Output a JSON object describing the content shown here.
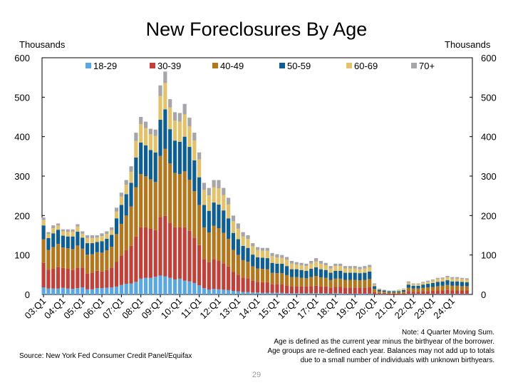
{
  "title": "New Foreclosures By Age",
  "left_unit": "Thousands",
  "right_unit": "Thousands",
  "note": [
    "Note: 4 Quarter Moving Sum.",
    "Age is defined as the current year minus the birthyear of the borrower.",
    "Age groups are re-defined each year. Balances may not add up to totals",
    "due to a small number of individuals with unknown birthyears."
  ],
  "source": "Source: New York Fed Consumer Credit Panel/Equifax",
  "page_number": "29",
  "chart_data": {
    "type": "bar",
    "stacked": true,
    "title": "New Foreclosures By Age",
    "xlabel": "",
    "ylabel": "Thousands",
    "ylim": [
      0,
      600
    ],
    "yticks": [
      0,
      100,
      200,
      300,
      400,
      500,
      600
    ],
    "grid": false,
    "legend_position": "top",
    "x_tick_labels": [
      "03:Q1",
      "04:Q1",
      "05:Q1",
      "06:Q1",
      "07:Q1",
      "08:Q1",
      "09:Q1",
      "10:Q1",
      "11:Q1",
      "12:Q1",
      "13:Q1",
      "14:Q1",
      "15:Q1",
      "16:Q1",
      "17:Q1",
      "18:Q1",
      "19:Q1",
      "20:Q1",
      "21:Q1",
      "22:Q1",
      "23:Q1",
      "24:Q1"
    ],
    "categories": [
      "03:Q1",
      "03:Q2",
      "03:Q3",
      "03:Q4",
      "04:Q1",
      "04:Q2",
      "04:Q3",
      "04:Q4",
      "05:Q1",
      "05:Q2",
      "05:Q3",
      "05:Q4",
      "06:Q1",
      "06:Q2",
      "06:Q3",
      "06:Q4",
      "07:Q1",
      "07:Q2",
      "07:Q3",
      "07:Q4",
      "08:Q1",
      "08:Q2",
      "08:Q3",
      "08:Q4",
      "09:Q1",
      "09:Q2",
      "09:Q3",
      "09:Q4",
      "10:Q1",
      "10:Q2",
      "10:Q3",
      "10:Q4",
      "11:Q1",
      "11:Q2",
      "11:Q3",
      "11:Q4",
      "12:Q1",
      "12:Q2",
      "12:Q3",
      "12:Q4",
      "13:Q1",
      "13:Q2",
      "13:Q3",
      "13:Q4",
      "14:Q1",
      "14:Q2",
      "14:Q3",
      "14:Q4",
      "15:Q1",
      "15:Q2",
      "15:Q3",
      "15:Q4",
      "16:Q1",
      "16:Q2",
      "16:Q3",
      "16:Q4",
      "17:Q1",
      "17:Q2",
      "17:Q3",
      "17:Q4",
      "18:Q1",
      "18:Q2",
      "18:Q3",
      "18:Q4",
      "19:Q1",
      "19:Q2",
      "19:Q3",
      "19:Q4",
      "20:Q1",
      "20:Q2",
      "20:Q3",
      "20:Q4",
      "21:Q1",
      "21:Q2",
      "21:Q3",
      "21:Q4",
      "22:Q1",
      "22:Q2",
      "22:Q3",
      "22:Q4",
      "23:Q1",
      "23:Q2",
      "23:Q3",
      "23:Q4",
      "24:Q1",
      "24:Q2",
      "24:Q3",
      "24:Q4"
    ],
    "totals": [
      195,
      158,
      175,
      180,
      165,
      165,
      165,
      178,
      160,
      150,
      150,
      150,
      155,
      160,
      170,
      220,
      258,
      290,
      325,
      410,
      450,
      438,
      420,
      418,
      530,
      565,
      495,
      462,
      460,
      483,
      448,
      410,
      360,
      283,
      270,
      290,
      290,
      270,
      245,
      200,
      180,
      158,
      150,
      130,
      120,
      118,
      118,
      105,
      102,
      100,
      95,
      85,
      82,
      80,
      78,
      85,
      92,
      85,
      80,
      72,
      78,
      78,
      72,
      72,
      72,
      70,
      72,
      75,
      28,
      15,
      12,
      10,
      10,
      12,
      15,
      33,
      28,
      28,
      32,
      35,
      38,
      42,
      43,
      47,
      44,
      44,
      42,
      41
    ],
    "series": [
      {
        "name": "18-29",
        "color": "#5BA7E0",
        "values": [
          18,
          15,
          15,
          15,
          17,
          15,
          14,
          16,
          18,
          13,
          13,
          16,
          16,
          17,
          18,
          20,
          24,
          27,
          28,
          32,
          40,
          42,
          42,
          45,
          48,
          46,
          42,
          38,
          40,
          35,
          33,
          29,
          23,
          16,
          12,
          14,
          13,
          12,
          11,
          9,
          8,
          6,
          6,
          5,
          5,
          4,
          4,
          4,
          4,
          4,
          3,
          3,
          3,
          3,
          3,
          3,
          3,
          3,
          3,
          2,
          3,
          3,
          2,
          2,
          2,
          2,
          2,
          2,
          1,
          1,
          1,
          0,
          0,
          0,
          0,
          1,
          1,
          1,
          1,
          1,
          1,
          1,
          1,
          1,
          1,
          1,
          1,
          1
        ]
      },
      {
        "name": "30-39",
        "color": "#C0403A",
        "values": [
          62,
          48,
          50,
          55,
          50,
          50,
          48,
          52,
          50,
          40,
          42,
          44,
          42,
          45,
          50,
          63,
          75,
          85,
          95,
          115,
          130,
          128,
          125,
          118,
          148,
          153,
          140,
          132,
          130,
          135,
          128,
          115,
          102,
          74,
          70,
          76,
          73,
          67,
          60,
          48,
          42,
          37,
          35,
          30,
          27,
          27,
          27,
          22,
          22,
          22,
          20,
          18,
          18,
          17,
          17,
          18,
          19,
          17,
          17,
          15,
          16,
          16,
          15,
          15,
          15,
          15,
          15,
          16,
          5,
          3,
          3,
          2,
          2,
          2,
          3,
          7,
          6,
          6,
          7,
          7,
          8,
          9,
          9,
          10,
          9,
          9,
          9,
          9
        ]
      },
      {
        "name": "40-49",
        "color": "#B3771E",
        "values": [
          60,
          50,
          55,
          58,
          52,
          52,
          53,
          56,
          48,
          48,
          47,
          47,
          48,
          50,
          53,
          70,
          80,
          88,
          100,
          125,
          135,
          130,
          125,
          122,
          155,
          170,
          150,
          138,
          135,
          142,
          130,
          118,
          102,
          80,
          75,
          84,
          82,
          77,
          70,
          56,
          50,
          44,
          42,
          36,
          34,
          34,
          33,
          29,
          28,
          28,
          26,
          23,
          23,
          22,
          21,
          23,
          25,
          23,
          22,
          20,
          21,
          21,
          20,
          20,
          20,
          19,
          20,
          21,
          8,
          4,
          3,
          3,
          3,
          3,
          4,
          9,
          8,
          8,
          9,
          10,
          10,
          11,
          12,
          13,
          12,
          12,
          11,
          11
        ]
      },
      {
        "name": "50-59",
        "color": "#0E5E92",
        "values": [
          35,
          30,
          35,
          36,
          30,
          30,
          32,
          35,
          28,
          29,
          28,
          26,
          29,
          29,
          30,
          40,
          48,
          54,
          60,
          75,
          80,
          78,
          74,
          75,
          92,
          100,
          87,
          82,
          82,
          88,
          83,
          78,
          70,
          57,
          55,
          59,
          60,
          57,
          52,
          43,
          40,
          36,
          35,
          30,
          28,
          28,
          28,
          25,
          24,
          24,
          23,
          20,
          20,
          20,
          19,
          21,
          22,
          21,
          20,
          18,
          20,
          20,
          18,
          18,
          18,
          18,
          18,
          19,
          7,
          4,
          3,
          3,
          3,
          3,
          4,
          8,
          7,
          7,
          8,
          9,
          10,
          11,
          11,
          12,
          11,
          11,
          11,
          10
        ]
      },
      {
        "name": "60-69",
        "color": "#E2C26A",
        "values": [
          14,
          10,
          13,
          11,
          11,
          12,
          12,
          13,
          10,
          13,
          13,
          11,
          13,
          12,
          12,
          17,
          21,
          24,
          28,
          42,
          47,
          44,
          40,
          42,
          60,
          67,
          55,
          51,
          51,
          56,
          52,
          50,
          45,
          38,
          39,
          39,
          41,
          39,
          35,
          30,
          27,
          24,
          23,
          21,
          19,
          18,
          19,
          17,
          16,
          15,
          16,
          14,
          12,
          12,
          12,
          13,
          15,
          14,
          12,
          11,
          12,
          12,
          11,
          11,
          11,
          10,
          11,
          11,
          4,
          2,
          1,
          1,
          1,
          3,
          3,
          5,
          4,
          4,
          5,
          5,
          6,
          7,
          7,
          7,
          7,
          7,
          7,
          7
        ]
      },
      {
        "name": "70+",
        "color": "#A6A6AA",
        "values": [
          6,
          5,
          7,
          5,
          5,
          6,
          6,
          6,
          6,
          7,
          7,
          6,
          7,
          7,
          7,
          10,
          10,
          12,
          14,
          21,
          18,
          16,
          14,
          16,
          27,
          29,
          21,
          21,
          22,
          27,
          22,
          20,
          18,
          18,
          19,
          18,
          21,
          18,
          17,
          14,
          13,
          11,
          9,
          8,
          7,
          7,
          7,
          8,
          8,
          7,
          7,
          7,
          6,
          6,
          6,
          7,
          8,
          7,
          6,
          6,
          6,
          6,
          6,
          6,
          6,
          6,
          6,
          6,
          3,
          1,
          1,
          1,
          1,
          1,
          1,
          3,
          2,
          2,
          2,
          3,
          3,
          3,
          3,
          4,
          4,
          4,
          3,
          3
        ]
      }
    ]
  }
}
